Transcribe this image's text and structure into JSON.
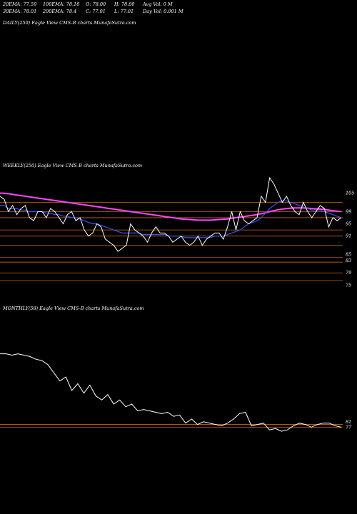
{
  "header": {
    "row1": [
      "20EMA: 77.59",
      "100EMA: 78.18",
      "O: 78.00",
      "H: 78.00",
      "Avg Vol: 0  M"
    ],
    "row2": [
      "30EMA: 78.01",
      "200EMA: 78.4",
      "C: 77.01",
      "L: 77.01",
      "Day Vol: 0.001 M"
    ]
  },
  "panels": {
    "daily_title": "DAILY(250) Eagle   View  CMS-B charts MunafaSutra.com",
    "weekly_title": "WEEKLY(250) Eagle   View  CMS-B charts MunafaSutra.com",
    "monthly_title": "MONTHLY(58) Eagle   View  CMS-B charts MunafaSutra.com"
  },
  "colors": {
    "background": "#000000",
    "price": "#ffffff",
    "ema_20": "#3355ff",
    "ema_30": "#aaaaaa",
    "ema_100": "#ff44ff",
    "ema_200": "#ffaa66",
    "level": "#cc6600"
  },
  "chart_data": [
    {
      "type": "line",
      "panel": "weekly",
      "ylim": [
        73,
        107
      ],
      "right_labels": [
        "105",
        "99",
        "95",
        "91",
        "85",
        "83",
        "79",
        "75"
      ],
      "levels": [
        102,
        99,
        97,
        93,
        91,
        88,
        84,
        82.5,
        79,
        76.5
      ],
      "price": [
        104,
        103,
        99,
        101,
        98,
        100,
        101,
        97,
        96,
        99,
        99,
        97,
        100,
        99,
        97,
        95,
        98,
        99,
        96,
        97,
        93,
        91,
        92,
        95,
        94,
        90,
        89,
        88,
        86,
        87,
        88,
        95,
        93,
        92,
        91,
        89,
        92,
        94,
        92,
        92,
        91,
        89,
        90,
        91,
        89,
        88,
        89,
        91,
        88,
        90,
        91,
        92,
        92,
        90,
        94,
        99,
        93,
        99,
        96,
        95,
        96,
        97,
        104,
        102,
        110,
        108,
        105,
        102,
        104,
        101,
        99,
        98,
        102,
        99,
        97,
        99,
        101,
        100,
        94,
        97,
        96,
        97
      ],
      "ema_20": [
        101,
        101,
        100,
        100,
        100,
        99.5,
        99.5,
        99,
        99,
        99,
        99,
        98.5,
        98.5,
        98,
        98,
        97.5,
        97.5,
        97,
        97,
        96.5,
        96,
        95.5,
        95,
        95,
        94.5,
        94,
        93.5,
        93,
        92.5,
        92,
        92,
        92,
        92,
        92,
        91.5,
        91.5,
        91.5,
        91.5,
        91.5,
        91.5,
        91,
        91,
        91,
        91,
        90.5,
        90.5,
        90.5,
        90.5,
        90.5,
        90.5,
        90.5,
        91,
        91,
        91,
        91.5,
        92,
        92.5,
        93,
        94,
        95,
        95.5,
        96,
        97,
        98.5,
        100,
        101,
        102,
        102.5,
        102.5,
        102,
        101.5,
        101,
        100.5,
        100,
        99.5,
        99.5,
        99.5,
        99,
        98.5,
        98,
        97.5,
        97
      ],
      "ema_100": [
        105,
        105,
        104.8,
        104.6,
        104.4,
        104.2,
        104,
        103.8,
        103.6,
        103.4,
        103.2,
        103,
        102.8,
        102.6,
        102.4,
        102.2,
        102,
        101.8,
        101.6,
        101.4,
        101.2,
        101,
        100.8,
        100.6,
        100.4,
        100.2,
        100,
        99.8,
        99.6,
        99.4,
        99.2,
        99,
        98.8,
        98.6,
        98.4,
        98.2,
        98,
        97.8,
        97.6,
        97.4,
        97.2,
        97,
        96.8,
        96.6,
        96.5,
        96.4,
        96.3,
        96.2,
        96.2,
        96.2,
        96.2,
        96.3,
        96.4,
        96.5,
        96.6,
        96.8,
        97,
        97.2,
        97.4,
        97.6,
        97.8,
        98,
        98.3,
        98.6,
        99,
        99.3,
        99.6,
        99.8,
        100,
        100.1,
        100.2,
        100.2,
        100.2,
        100.1,
        100,
        99.9,
        99.8,
        99.7,
        99.5,
        99.3,
        99.1,
        99
      ]
    },
    {
      "type": "line",
      "panel": "monthly",
      "ylim": [
        73,
        135
      ],
      "right_labels": [
        "81",
        "77"
      ],
      "levels": [
        79,
        77
      ],
      "price": [
        131,
        131,
        130,
        131,
        130,
        129,
        127,
        126,
        123,
        117,
        111,
        114,
        104,
        109,
        102,
        108,
        100,
        97,
        101,
        94,
        97,
        92,
        94,
        89,
        90,
        89,
        88,
        87,
        88,
        85,
        86,
        80,
        83,
        79,
        81,
        80,
        79,
        78,
        80,
        83,
        87,
        88,
        78,
        79,
        80,
        75,
        76,
        74,
        75,
        78,
        80,
        79,
        77,
        79,
        80,
        80,
        78,
        77
      ]
    }
  ]
}
